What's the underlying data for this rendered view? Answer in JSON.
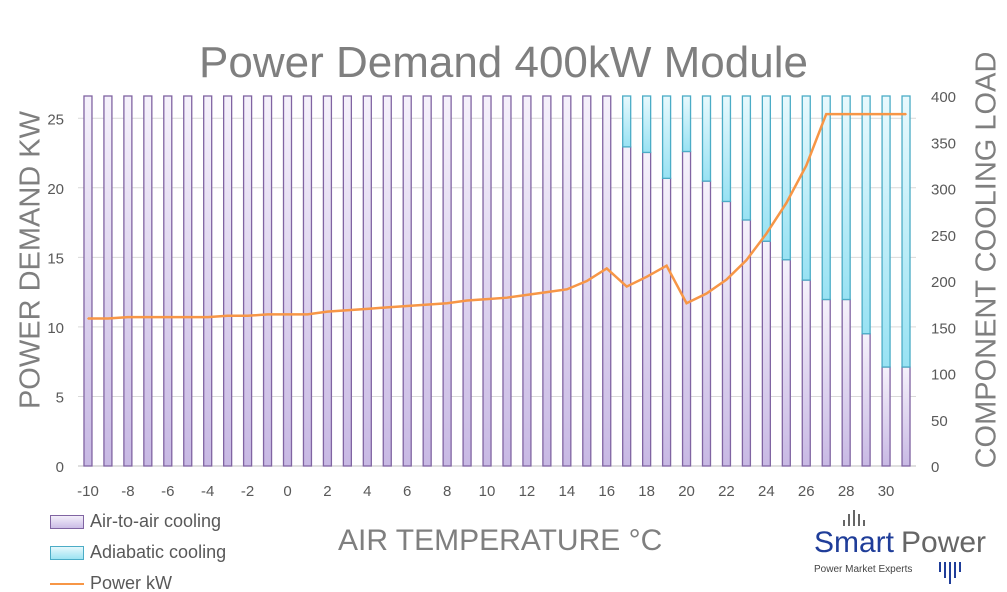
{
  "chart_data": {
    "type": "bar",
    "title": "Power Demand 400kW Module",
    "xlabel": "AIR TEMPERATURE °C",
    "ylabel": "POWER DEMAND  KW",
    "y2label": "COMPONENT COOLING LOAD",
    "x": [
      -10,
      -9,
      -8,
      -7,
      -6,
      -5,
      -4,
      -3,
      -2,
      -1,
      0,
      1,
      2,
      3,
      4,
      5,
      6,
      7,
      8,
      9,
      10,
      11,
      12,
      13,
      14,
      15,
      16,
      17,
      18,
      19,
      20,
      21,
      22,
      23,
      24,
      25,
      26,
      27,
      28,
      29,
      30,
      31
    ],
    "x_tick_labels": [
      "-10",
      "-8",
      "-6",
      "-4",
      "-2",
      "0",
      "2",
      "4",
      "6",
      "8",
      "10",
      "12",
      "14",
      "16",
      "18",
      "20",
      "22",
      "24",
      "26",
      "28",
      "30"
    ],
    "ylim": [
      0,
      26.6
    ],
    "y_ticks": [
      "0",
      "5",
      "10",
      "15",
      "20",
      "25"
    ],
    "y2lim": [
      0,
      400
    ],
    "y2_ticks": [
      "0",
      "50",
      "100",
      "150",
      "200",
      "250",
      "300",
      "350",
      "400"
    ],
    "grid": true,
    "legend_position": "bottom-left",
    "series": [
      {
        "name": "Air-to-air cooling",
        "kind": "stacked-bar",
        "axis": "right",
        "color": "#8064a2",
        "values": [
          400,
          400,
          400,
          400,
          400,
          400,
          400,
          400,
          400,
          400,
          400,
          400,
          400,
          400,
          400,
          400,
          400,
          400,
          400,
          400,
          400,
          400,
          400,
          400,
          400,
          400,
          400,
          345,
          339,
          311,
          340,
          308,
          286,
          266,
          243,
          223,
          201,
          180,
          180,
          143,
          107,
          107
        ]
      },
      {
        "name": "Adiabatic cooling",
        "kind": "stacked-bar",
        "axis": "right",
        "color": "#4bacc6",
        "values": [
          0,
          0,
          0,
          0,
          0,
          0,
          0,
          0,
          0,
          0,
          0,
          0,
          0,
          0,
          0,
          0,
          0,
          0,
          0,
          0,
          0,
          0,
          0,
          0,
          0,
          0,
          0,
          55,
          61,
          89,
          60,
          92,
          114,
          134,
          157,
          177,
          199,
          220,
          220,
          257,
          293,
          293
        ]
      },
      {
        "name": "Power kW",
        "kind": "line",
        "axis": "left",
        "color": "#f79646",
        "values": [
          10.6,
          10.6,
          10.7,
          10.7,
          10.7,
          10.7,
          10.7,
          10.8,
          10.8,
          10.9,
          10.9,
          10.9,
          11.1,
          11.2,
          11.3,
          11.4,
          11.5,
          11.6,
          11.7,
          11.9,
          12.0,
          12.1,
          12.3,
          12.5,
          12.7,
          13.3,
          14.2,
          12.9,
          13.6,
          14.4,
          11.7,
          12.4,
          13.4,
          14.8,
          16.7,
          18.9,
          21.6,
          25.3,
          25.3,
          25.3,
          25.3,
          25.3
        ]
      }
    ]
  },
  "logo": {
    "name_a": "Smart",
    "name_b": "Power",
    "tagline": "Power Market Experts"
  }
}
